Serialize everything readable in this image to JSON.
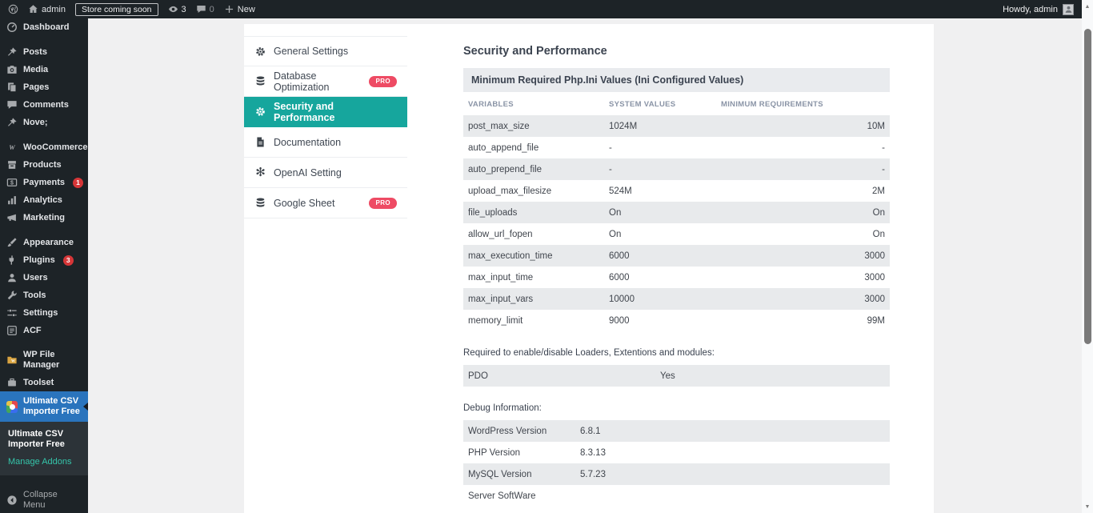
{
  "admin_bar": {
    "site_name": "admin",
    "coming_soon_label": "Store coming soon",
    "updates_count": "3",
    "comments_count": "0",
    "new_label": "New",
    "howdy": "Howdy, admin"
  },
  "sidebar": {
    "items": [
      {
        "label": "Dashboard",
        "icon": "dashboard-icon",
        "gap": false
      },
      {
        "label": "Posts",
        "icon": "pin-icon",
        "gap": true
      },
      {
        "label": "Media",
        "icon": "media-icon"
      },
      {
        "label": "Pages",
        "icon": "pages-icon"
      },
      {
        "label": "Comments",
        "icon": "comments-icon"
      },
      {
        "label": "Nove;",
        "icon": "pin-icon"
      },
      {
        "label": "WooCommerce",
        "icon": "woocommerce-icon",
        "gap": true
      },
      {
        "label": "Products",
        "icon": "products-icon"
      },
      {
        "label": "Payments",
        "icon": "payments-icon",
        "badge": "1"
      },
      {
        "label": "Analytics",
        "icon": "analytics-icon"
      },
      {
        "label": "Marketing",
        "icon": "marketing-icon"
      },
      {
        "label": "Appearance",
        "icon": "appearance-icon",
        "gap": true
      },
      {
        "label": "Plugins",
        "icon": "plugins-icon",
        "badge": "3"
      },
      {
        "label": "Users",
        "icon": "users-icon"
      },
      {
        "label": "Tools",
        "icon": "tools-icon"
      },
      {
        "label": "Settings",
        "icon": "settings-icon"
      },
      {
        "label": "ACF",
        "icon": "acf-icon"
      },
      {
        "label": "WP File Manager",
        "icon": "folder-icon",
        "gap": true
      },
      {
        "label": "Toolset",
        "icon": "toolset-icon"
      },
      {
        "label": "Ultimate CSV Importer Free",
        "icon": "csv-logo-icon",
        "active": true
      }
    ],
    "submenu": {
      "title": "Ultimate CSV Importer Free",
      "link": "Manage Addons"
    },
    "collapse_label": "Collapse Menu"
  },
  "settings_nav": {
    "items": [
      {
        "label": "General Settings",
        "icon": "gear-icon"
      },
      {
        "label": "Database Optimization",
        "icon": "database-icon",
        "pro": "PRO"
      },
      {
        "label": "Security and Performance",
        "icon": "gear-icon",
        "active": true
      },
      {
        "label": "Documentation",
        "icon": "document-icon"
      },
      {
        "label": "OpenAI Setting",
        "icon": "openai-icon"
      },
      {
        "label": "Google Sheet",
        "icon": "database-icon",
        "pro": "PRO"
      }
    ]
  },
  "content": {
    "title": "Security and Performance",
    "section_header": "Minimum Required Php.Ini Values (Ini Configured Values)",
    "php_table": {
      "headers": [
        "VARIABLES",
        "SYSTEM VALUES",
        "MINIMUM REQUIREMENTS"
      ],
      "rows": [
        [
          "post_max_size",
          "1024M",
          "10M"
        ],
        [
          "auto_append_file",
          "-",
          "-"
        ],
        [
          "auto_prepend_file",
          "-",
          "-"
        ],
        [
          "upload_max_filesize",
          "524M",
          "2M"
        ],
        [
          "file_uploads",
          "On",
          "On"
        ],
        [
          "allow_url_fopen",
          "On",
          "On"
        ],
        [
          "max_execution_time",
          "6000",
          "3000"
        ],
        [
          "max_input_time",
          "6000",
          "3000"
        ],
        [
          "max_input_vars",
          "10000",
          "3000"
        ],
        [
          "memory_limit",
          "9000",
          "99M"
        ]
      ]
    },
    "loaders_label": "Required to enable/disable Loaders, Extentions and modules:",
    "loaders_rows": [
      [
        "PDO",
        "Yes"
      ]
    ],
    "debug_label": "Debug Information:",
    "debug_rows": [
      [
        "WordPress Version",
        "6.8.1"
      ],
      [
        "PHP Version",
        "8.3.13"
      ],
      [
        "MySQL Version",
        "5.7.23"
      ],
      [
        "Server SoftWare",
        ""
      ]
    ]
  },
  "colors": {
    "accent_teal": "#16a69d",
    "pro_badge": "#ee4b64",
    "active_menu_blue": "#2a74bd",
    "notification_red": "#d63638",
    "addons_link_teal": "#35c5aa",
    "admin_dark": "#1d2327",
    "row_stripe": "#e8eaec"
  }
}
